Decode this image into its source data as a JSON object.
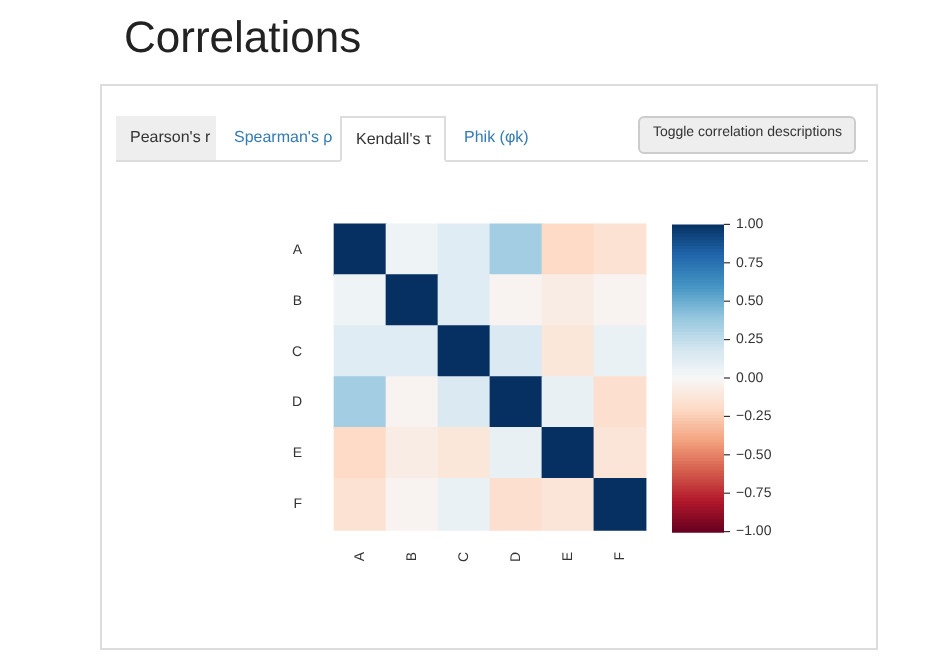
{
  "chart_data": {
    "type": "heatmap",
    "title": "Correlations",
    "annotations": [
      "Pearson's r",
      "Spearman's ρ",
      "Kendall's τ",
      "Phik (φk)",
      "Toggle correlation descriptions"
    ],
    "categories": [
      "A",
      "B",
      "C",
      "D",
      "E",
      "F"
    ],
    "y_categories": [
      "A",
      "B",
      "C",
      "D",
      "E",
      "F"
    ],
    "cells": [
      [
        1,
        0.05,
        0.12,
        0.35,
        -0.2,
        -0.15
      ],
      [
        0.05,
        1,
        0.12,
        -0.03,
        -0.08,
        -0.03
      ],
      [
        0.12,
        0.12,
        1,
        0.15,
        -0.12,
        0.07
      ],
      [
        0.35,
        -0.03,
        0.15,
        1,
        0.08,
        -0.17
      ],
      [
        -0.2,
        -0.08,
        -0.12,
        0.08,
        1,
        -0.13
      ],
      [
        -0.15,
        -0.03,
        0.07,
        -0.17,
        -0.13,
        1
      ]
    ],
    "clim": [
      -1,
      1
    ],
    "cticks": [
      {
        "value": 1,
        "label": "1.00"
      },
      {
        "value": 0.75,
        "label": "0.75"
      },
      {
        "value": 0.5,
        "label": "0.50"
      },
      {
        "value": 0.25,
        "label": "0.25"
      },
      {
        "value": 0,
        "label": "0.00"
      },
      {
        "value": -0.25,
        "label": "−0.25"
      },
      {
        "value": -0.5,
        "label": "−0.50"
      },
      {
        "value": -0.75,
        "label": "−0.75"
      },
      {
        "value": -1,
        "label": "−1.00"
      }
    ]
  }
}
